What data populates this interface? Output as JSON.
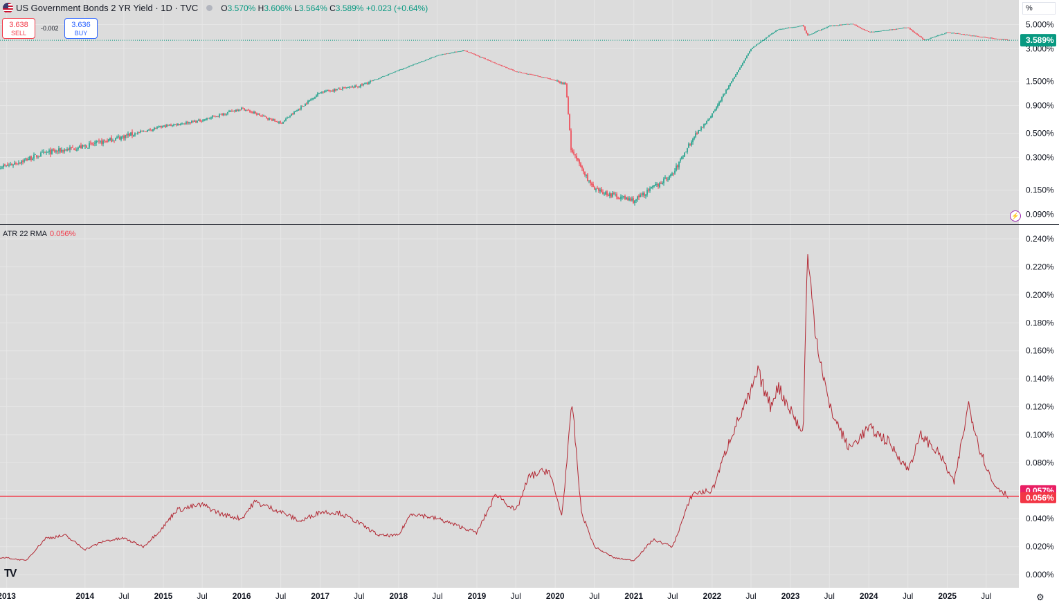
{
  "header": {
    "title": "US Government Bonds 2 YR Yield · 1D · TVC",
    "ohlc": [
      {
        "k": "O",
        "v": "3.570%"
      },
      {
        "k": "H",
        "v": "3.606%"
      },
      {
        "k": "L",
        "v": "3.564%"
      },
      {
        "k": "C",
        "v": "3.589%"
      }
    ],
    "change": "+0.023 (+0.64%)"
  },
  "trade": {
    "sell_price": "3.638",
    "sell_label": "SELL",
    "spread": "-0.002",
    "buy_price": "3.636",
    "buy_label": "BUY"
  },
  "scale_mode_label": "%",
  "atr_header": {
    "name": "ATR 22 RMA",
    "value": "0.056%"
  },
  "logo_text": "TV",
  "colors": {
    "up": "#089981",
    "down": "#f23645",
    "atr_line": "#b22833",
    "atr_level": "#f23645",
    "bg": "#ffffff",
    "grid": "#f0f3fa",
    "last_atr_tag": "#f23645",
    "prev_atr_tag": "#e91e63"
  },
  "icons": {
    "flag": "us-flag-icon",
    "settings": "gear-icon",
    "bolt": "lightning-icon"
  },
  "chart_data": [
    {
      "type": "candlestick",
      "title": "US Government Bonds 2 YR Yield · 1D · TVC",
      "ylabel": "%",
      "y_scale": "log",
      "yticks": [
        "5.000%",
        "3.000%",
        "1.500%",
        "0.900%",
        "0.500%",
        "0.300%",
        "0.150%",
        "0.090%"
      ],
      "ytick_values": [
        5.0,
        3.0,
        1.5,
        0.9,
        0.5,
        0.3,
        0.15,
        0.09
      ],
      "last_price_label": "3.589%",
      "last_price": 3.589,
      "x_dates": [
        "2013-01-01",
        "2013-07-01",
        "2014-01-01",
        "2014-07-01",
        "2015-01-01",
        "2015-07-01",
        "2016-01-01",
        "2016-07-01",
        "2017-01-01",
        "2017-07-01",
        "2018-01-01",
        "2018-07-01",
        "2018-11-01",
        "2019-07-01",
        "2019-12-01",
        "2020-02-20",
        "2020-03-15",
        "2020-07-01",
        "2021-01-01",
        "2021-07-01",
        "2021-10-01",
        "2022-01-01",
        "2022-07-01",
        "2022-11-01",
        "2023-03-01",
        "2023-03-20",
        "2023-07-01",
        "2023-10-15",
        "2024-01-01",
        "2024-07-01",
        "2024-09-15",
        "2025-01-01",
        "2025-07-01",
        "2025-10-15"
      ],
      "values": [
        0.25,
        0.33,
        0.38,
        0.47,
        0.58,
        0.66,
        0.85,
        0.62,
        1.2,
        1.36,
        1.9,
        2.6,
        2.9,
        1.85,
        1.6,
        1.4,
        0.35,
        0.15,
        0.12,
        0.21,
        0.45,
        0.75,
        3.0,
        4.5,
        4.9,
        3.95,
        4.85,
        5.1,
        4.25,
        4.7,
        3.6,
        4.25,
        3.8,
        3.589
      ]
    },
    {
      "type": "line",
      "title": "ATR 22 RMA",
      "ylabel": "%",
      "yticks": [
        "0.240%",
        "0.220%",
        "0.200%",
        "0.180%",
        "0.160%",
        "0.140%",
        "0.120%",
        "0.100%",
        "0.080%",
        "0.060%",
        "0.040%",
        "0.020%",
        "0.000%"
      ],
      "ytick_values": [
        0.24,
        0.22,
        0.2,
        0.18,
        0.16,
        0.14,
        0.12,
        0.1,
        0.08,
        0.06,
        0.04,
        0.02,
        0.0
      ],
      "ylim": [
        0.0,
        0.24
      ],
      "last_value_label": "0.056%",
      "last_value": 0.056,
      "prev_value_label": "0.057%",
      "prev_value": 0.057,
      "horizontal_line": 0.056,
      "x_dates": [
        "2013-01-01",
        "2013-04-01",
        "2013-07-01",
        "2013-10-01",
        "2014-01-01",
        "2014-04-01",
        "2014-07-01",
        "2014-10-01",
        "2015-01-01",
        "2015-03-01",
        "2015-07-01",
        "2015-10-01",
        "2016-01-01",
        "2016-03-01",
        "2016-07-01",
        "2016-10-01",
        "2017-01-01",
        "2017-04-01",
        "2017-07-01",
        "2017-10-01",
        "2018-01-01",
        "2018-03-01",
        "2018-07-01",
        "2018-10-01",
        "2019-01-01",
        "2019-04-01",
        "2019-07-01",
        "2019-09-01",
        "2019-12-01",
        "2020-02-01",
        "2020-03-20",
        "2020-05-01",
        "2020-07-01",
        "2020-10-01",
        "2021-01-01",
        "2021-04-01",
        "2021-07-01",
        "2021-10-01",
        "2022-01-01",
        "2022-04-01",
        "2022-07-01",
        "2022-08-01",
        "2022-10-01",
        "2022-11-01",
        "2023-01-01",
        "2023-03-01",
        "2023-03-20",
        "2023-05-01",
        "2023-07-01",
        "2023-10-01",
        "2024-01-01",
        "2024-04-01",
        "2024-07-01",
        "2024-09-01",
        "2024-12-01",
        "2025-02-01",
        "2025-04-10",
        "2025-06-01",
        "2025-08-01",
        "2025-10-15"
      ],
      "values": [
        0.012,
        0.01,
        0.026,
        0.028,
        0.018,
        0.024,
        0.026,
        0.02,
        0.034,
        0.046,
        0.05,
        0.043,
        0.04,
        0.052,
        0.045,
        0.038,
        0.045,
        0.044,
        0.037,
        0.028,
        0.028,
        0.044,
        0.04,
        0.035,
        0.03,
        0.058,
        0.045,
        0.07,
        0.075,
        0.042,
        0.123,
        0.045,
        0.02,
        0.012,
        0.01,
        0.025,
        0.02,
        0.058,
        0.06,
        0.1,
        0.13,
        0.145,
        0.12,
        0.135,
        0.118,
        0.1,
        0.228,
        0.17,
        0.12,
        0.09,
        0.105,
        0.095,
        0.075,
        0.1,
        0.085,
        0.065,
        0.122,
        0.09,
        0.065,
        0.056
      ]
    }
  ],
  "x_axis_ticks": [
    {
      "label": "2013",
      "date": "2013-01-01"
    },
    {
      "label": "2014",
      "date": "2014-01-01"
    },
    {
      "label": "Jul",
      "date": "2014-07-01"
    },
    {
      "label": "2015",
      "date": "2015-01-01"
    },
    {
      "label": "Jul",
      "date": "2015-07-01"
    },
    {
      "label": "2016",
      "date": "2016-01-01"
    },
    {
      "label": "Jul",
      "date": "2016-07-01"
    },
    {
      "label": "2017",
      "date": "2017-01-01"
    },
    {
      "label": "Jul",
      "date": "2017-07-01"
    },
    {
      "label": "2018",
      "date": "2018-01-01"
    },
    {
      "label": "Jul",
      "date": "2018-07-01"
    },
    {
      "label": "2019",
      "date": "2019-01-01"
    },
    {
      "label": "Jul",
      "date": "2019-07-01"
    },
    {
      "label": "2020",
      "date": "2020-01-01"
    },
    {
      "label": "Jul",
      "date": "2020-07-01"
    },
    {
      "label": "2021",
      "date": "2021-01-01"
    },
    {
      "label": "Jul",
      "date": "2021-07-01"
    },
    {
      "label": "2022",
      "date": "2022-01-01"
    },
    {
      "label": "Jul",
      "date": "2022-07-01"
    },
    {
      "label": "2023",
      "date": "2023-01-01"
    },
    {
      "label": "Jul",
      "date": "2023-07-01"
    },
    {
      "label": "2024",
      "date": "2024-01-01"
    },
    {
      "label": "Jul",
      "date": "2024-07-01"
    },
    {
      "label": "2025",
      "date": "2025-01-01"
    },
    {
      "label": "Jul",
      "date": "2025-07-01"
    }
  ]
}
